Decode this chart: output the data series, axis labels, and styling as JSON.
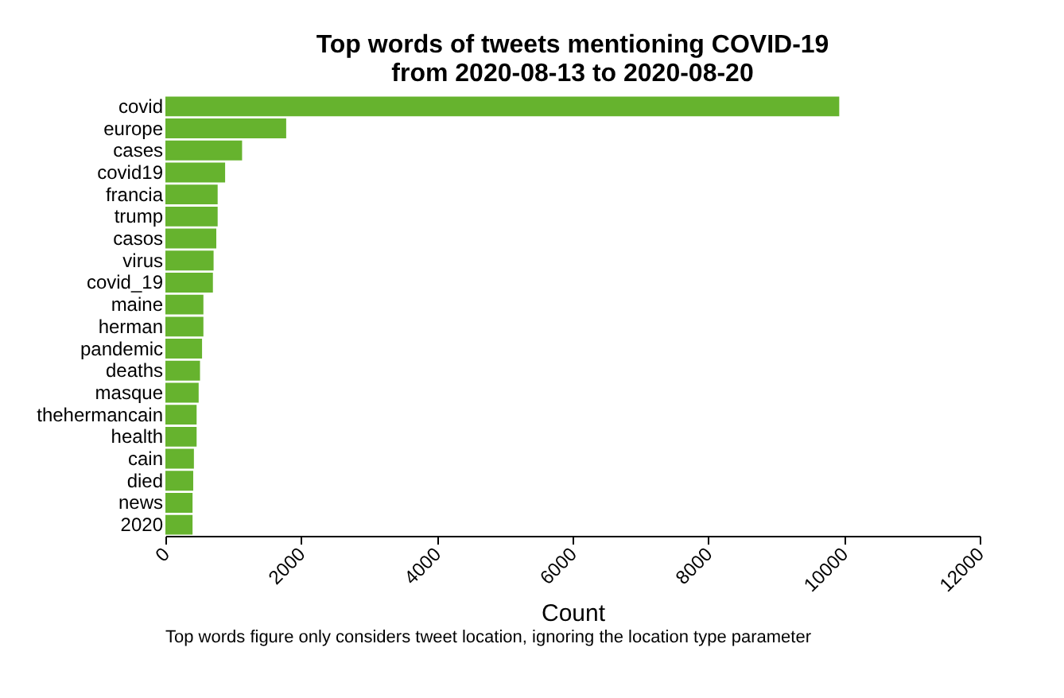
{
  "chart_data": {
    "type": "bar",
    "orientation": "horizontal",
    "title": [
      "Top words of tweets mentioning COVID-19",
      "from 2020-08-13 to 2020-08-20"
    ],
    "xlabel": "Count",
    "categories": [
      "covid",
      "europe",
      "cases",
      "covid19",
      "francia",
      "trump",
      "casos",
      "virus",
      "covid_19",
      "maine",
      "herman",
      "pandemic",
      "deaths",
      "masque",
      "thehermancain",
      "health",
      "cain",
      "died",
      "news",
      "2020"
    ],
    "values": [
      9930,
      1780,
      1130,
      880,
      770,
      770,
      750,
      710,
      700,
      560,
      560,
      540,
      510,
      490,
      460,
      460,
      420,
      410,
      400,
      400
    ],
    "color": "#66b32e",
    "xlim": [
      0,
      12000
    ],
    "xticks": [
      0,
      2000,
      4000,
      6000,
      8000,
      10000,
      12000
    ],
    "grid": false,
    "annotations": [
      "Top words figure only considers tweet location, ignoring the location type parameter"
    ]
  }
}
